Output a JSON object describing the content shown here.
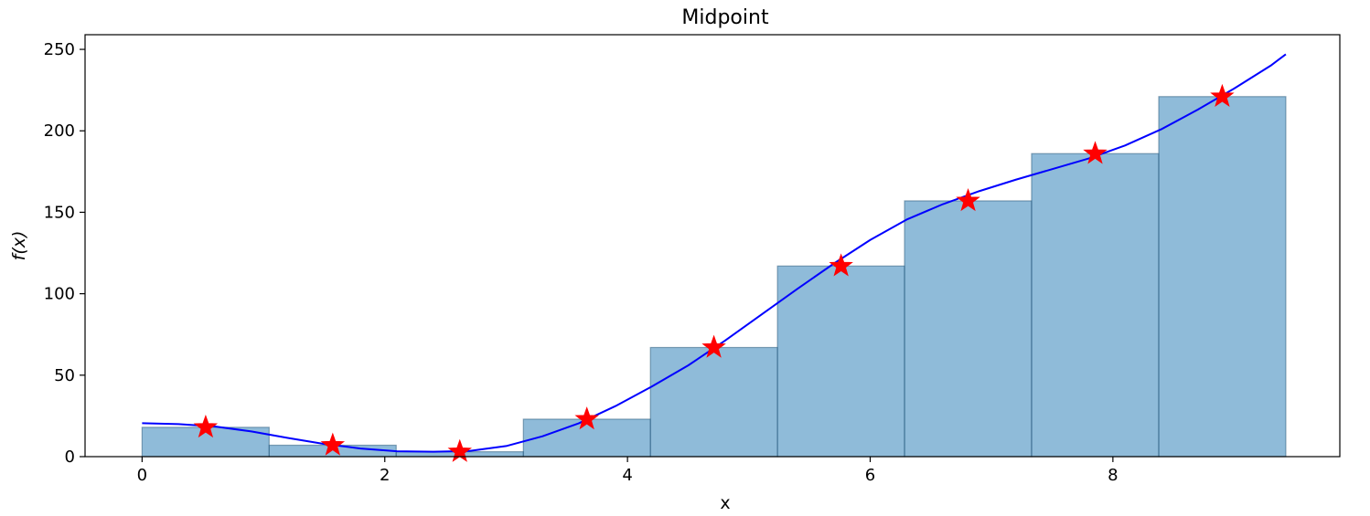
{
  "chart_data": {
    "type": "bar",
    "title": "Midpoint",
    "xlabel": "x",
    "ylabel": "f(x)",
    "xlim": [
      -0.47,
      9.87
    ],
    "ylim": [
      0,
      259
    ],
    "xticks": [
      0,
      2,
      4,
      6,
      8
    ],
    "xtick_labels": [
      "0",
      "2",
      "4",
      "6",
      "8"
    ],
    "yticks": [
      0,
      50,
      100,
      150,
      200,
      250
    ],
    "ytick_labels": [
      "0",
      "50",
      "100",
      "150",
      "200",
      "250"
    ],
    "grid": false,
    "bar_color": "#1f77b4",
    "bar_opacity": 0.5,
    "curve_color": "#0000ff",
    "marker_color": "#ff0000",
    "bars": [
      {
        "x0": 0.0,
        "x1": 1.047,
        "height": 18
      },
      {
        "x0": 1.047,
        "x1": 2.094,
        "height": 7
      },
      {
        "x0": 2.094,
        "x1": 3.142,
        "height": 3
      },
      {
        "x0": 3.142,
        "x1": 4.189,
        "height": 23
      },
      {
        "x0": 4.189,
        "x1": 5.236,
        "height": 67
      },
      {
        "x0": 5.236,
        "x1": 6.283,
        "height": 117
      },
      {
        "x0": 6.283,
        "x1": 7.33,
        "height": 157
      },
      {
        "x0": 7.33,
        "x1": 8.378,
        "height": 186
      },
      {
        "x0": 8.378,
        "x1": 9.425,
        "height": 221
      }
    ],
    "midpoints": {
      "x": [
        0.524,
        1.571,
        2.618,
        3.665,
        4.712,
        5.76,
        6.807,
        7.854,
        8.901
      ],
      "y": [
        18,
        7,
        3,
        23,
        67,
        117,
        157,
        186,
        221
      ]
    },
    "curve": {
      "x": [
        0.0,
        0.3,
        0.6,
        0.9,
        1.2,
        1.5,
        1.8,
        2.1,
        2.4,
        2.7,
        3.0,
        3.3,
        3.6,
        3.9,
        4.2,
        4.5,
        4.8,
        5.1,
        5.4,
        5.7,
        6.0,
        6.3,
        6.6,
        6.9,
        7.2,
        7.5,
        7.8,
        8.1,
        8.4,
        8.7,
        9.0,
        9.3,
        9.425
      ],
      "y": [
        20.5,
        20.0,
        18.5,
        15.5,
        11.5,
        7.8,
        5.0,
        3.3,
        3.0,
        3.5,
        6.5,
        12.5,
        20.5,
        31.0,
        43.0,
        56.0,
        71.0,
        87.0,
        103.0,
        118.5,
        133.0,
        145.5,
        155.0,
        163.0,
        170.0,
        176.5,
        183.0,
        191.0,
        201.0,
        213.0,
        226.0,
        240.0,
        247.0
      ]
    }
  }
}
